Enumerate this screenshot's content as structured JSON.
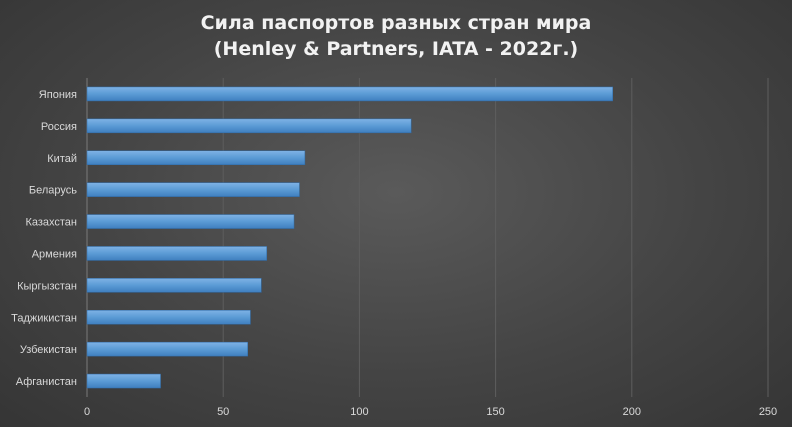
{
  "chart_data": {
    "type": "bar",
    "orientation": "horizontal",
    "title": "Сила паспортов разных стран мира",
    "subtitle": "(Henley & Partners, IATA - 2022г.)",
    "categories": [
      "Япония",
      "Россия",
      "Китай",
      "Беларусь",
      "Казахстан",
      "Армения",
      "Кыргызстан",
      "Таджикистан",
      "Узбекистан",
      "Афганистан"
    ],
    "values": [
      193,
      119,
      80,
      78,
      76,
      66,
      64,
      60,
      59,
      27
    ],
    "xlim": [
      0,
      250
    ],
    "xticks": [
      0,
      50,
      100,
      150,
      200,
      250
    ],
    "grid": "vertical",
    "bar_color": "#5b9bd5",
    "background_color": "#444444",
    "text_color": "#d9d9d9"
  }
}
